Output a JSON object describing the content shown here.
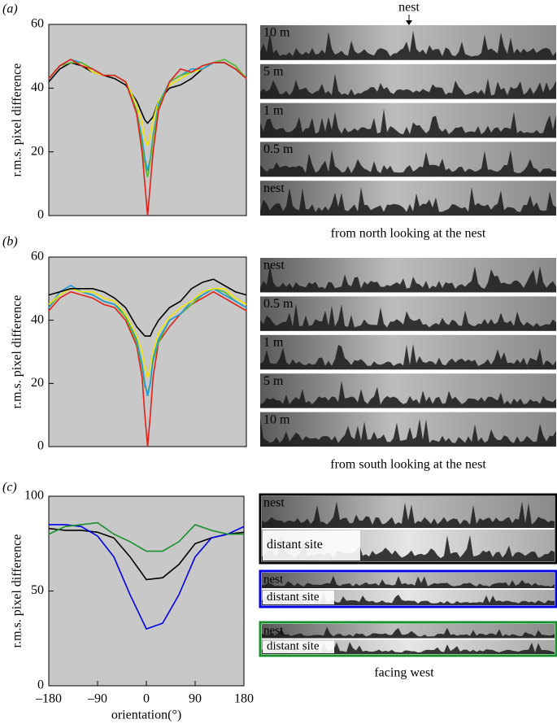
{
  "chart_data": [
    {
      "type": "line",
      "panel": "(a)",
      "ylabel": "r.m.s. pixel difference",
      "annotation": "nest",
      "caption": "from north looking at the nest",
      "xlim": [
        -180,
        180
      ],
      "ylim": [
        0,
        60
      ],
      "yticks": [
        0,
        20,
        40,
        60
      ],
      "background": "#c8c8c8",
      "x": [
        -180,
        -160,
        -140,
        -120,
        -100,
        -80,
        -60,
        -40,
        -20,
        -10,
        -5,
        0,
        5,
        10,
        20,
        40,
        60,
        80,
        100,
        120,
        140,
        160,
        180
      ],
      "series": [
        {
          "name": "10 m",
          "color": "#000000",
          "values": [
            42,
            46,
            48,
            47,
            45,
            44,
            43,
            41,
            36,
            32,
            30,
            29,
            30,
            31,
            36,
            40,
            41,
            43,
            46,
            48,
            48,
            46,
            43
          ]
        },
        {
          "name": "5 m",
          "color": "#f2e600",
          "values": [
            43,
            47,
            49,
            48,
            45,
            44,
            44,
            42,
            35,
            29,
            24,
            22,
            25,
            30,
            36,
            41,
            43,
            45,
            46,
            48,
            49,
            47,
            43
          ]
        },
        {
          "name": "1 m",
          "color": "#1e9ad6",
          "values": [
            43,
            47,
            49,
            48,
            46,
            44,
            44,
            42,
            33,
            24,
            18,
            14,
            18,
            25,
            35,
            42,
            44,
            46,
            46,
            48,
            49,
            47,
            43
          ]
        },
        {
          "name": "0.5 m",
          "color": "#5cb82e",
          "values": [
            43,
            47,
            48,
            48,
            46,
            44,
            44,
            42,
            33,
            22,
            16,
            12,
            17,
            24,
            34,
            42,
            44,
            45,
            47,
            48,
            49,
            47,
            43
          ]
        },
        {
          "name": "nest",
          "color": "#e0201b",
          "values": [
            43,
            47,
            49,
            47,
            46,
            44,
            44,
            42,
            32,
            20,
            10,
            0,
            10,
            20,
            33,
            42,
            46,
            45,
            47,
            48,
            48,
            46,
            43
          ]
        }
      ]
    },
    {
      "type": "line",
      "panel": "(b)",
      "ylabel": "r.m.s. pixel difference",
      "caption": "from south looking at the nest",
      "xlim": [
        -180,
        180
      ],
      "ylim": [
        0,
        60
      ],
      "yticks": [
        0,
        20,
        40,
        60
      ],
      "background": "#c8c8c8",
      "x": [
        -180,
        -160,
        -140,
        -120,
        -100,
        -80,
        -60,
        -40,
        -20,
        -10,
        -5,
        0,
        5,
        10,
        20,
        40,
        60,
        80,
        100,
        120,
        140,
        160,
        180
      ],
      "series": [
        {
          "name": "nest",
          "color": "#e0201b",
          "values": [
            43,
            47,
            49,
            48,
            47,
            45,
            44,
            40,
            32,
            22,
            10,
            0,
            10,
            22,
            33,
            38,
            42,
            45,
            47,
            49,
            47,
            45,
            43
          ]
        },
        {
          "name": "0.5 m",
          "color": "#5cb82e",
          "values": [
            44,
            48,
            50,
            49,
            48,
            46,
            45,
            41,
            33,
            25,
            19,
            17,
            20,
            27,
            33,
            40,
            42,
            45,
            48,
            50,
            49,
            46,
            44
          ]
        },
        {
          "name": "1 m",
          "color": "#1e9ad6",
          "values": [
            44,
            49,
            51,
            49,
            48,
            46,
            45,
            42,
            34,
            26,
            20,
            16,
            20,
            28,
            34,
            40,
            42,
            46,
            48,
            50,
            48,
            46,
            44
          ]
        },
        {
          "name": "5 m",
          "color": "#f2e600",
          "values": [
            45,
            48,
            50,
            49,
            49,
            47,
            46,
            42,
            35,
            30,
            25,
            22,
            25,
            30,
            36,
            41,
            44,
            46,
            49,
            50,
            50,
            47,
            45
          ]
        },
        {
          "name": "10 m",
          "color": "#000000",
          "values": [
            48,
            49,
            50,
            50,
            50,
            49,
            47,
            44,
            38,
            36,
            35,
            35,
            35,
            37,
            40,
            44,
            46,
            50,
            52,
            53,
            51,
            49,
            48
          ]
        }
      ]
    },
    {
      "type": "line",
      "panel": "(c)",
      "ylabel": "r.m.s. pixel difference",
      "xlabel": "orientation(°)",
      "caption": "facing west",
      "image_labels": [
        "nest",
        "distant site"
      ],
      "xlim": [
        -180,
        180
      ],
      "ylim": [
        0,
        100
      ],
      "yticks": [
        0,
        50,
        100
      ],
      "xticks": [
        {
          "value": -180,
          "label": "–180"
        },
        {
          "value": -90,
          "label": "–90"
        },
        0,
        90,
        180
      ],
      "background": "#c8c8c8",
      "x": [
        -180,
        -150,
        -120,
        -90,
        -60,
        -30,
        0,
        30,
        60,
        90,
        120,
        150,
        180
      ],
      "series": [
        {
          "color": "#000000",
          "values": [
            83,
            82,
            82,
            81,
            78,
            68,
            56,
            57,
            64,
            75,
            78,
            80,
            81
          ]
        },
        {
          "color": "#0000e6",
          "values": [
            85,
            85,
            84,
            79,
            68,
            48,
            30,
            33,
            48,
            68,
            78,
            80,
            84
          ]
        },
        {
          "color": "#1a8f2e",
          "values": [
            80,
            84,
            85,
            86,
            80,
            76,
            71,
            71,
            76,
            85,
            82,
            80,
            80
          ]
        }
      ]
    }
  ]
}
